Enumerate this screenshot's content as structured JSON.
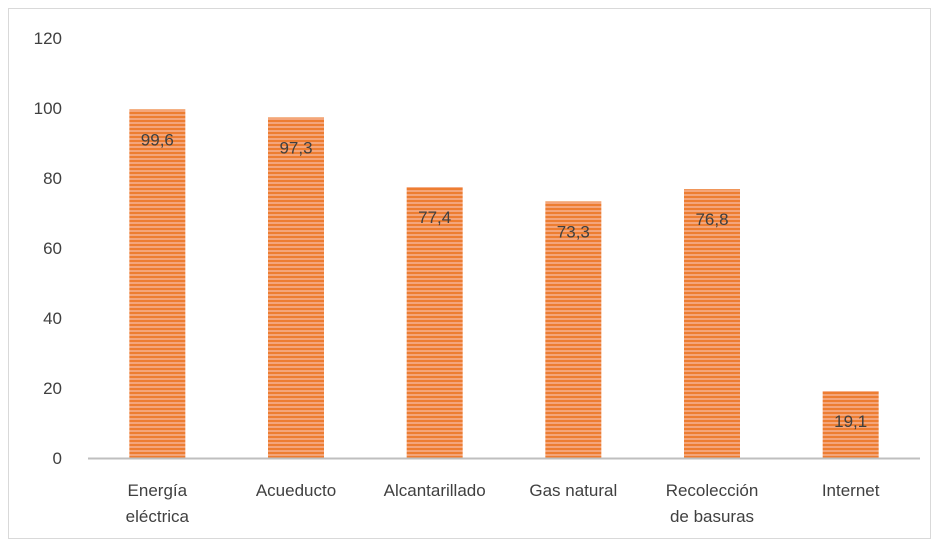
{
  "chart_data": {
    "type": "bar",
    "categories": [
      [
        "Energía",
        "eléctrica"
      ],
      [
        "Acueducto"
      ],
      [
        "Alcantarillado"
      ],
      [
        "Gas natural"
      ],
      [
        "Recolección",
        "de basuras"
      ],
      [
        "Internet"
      ]
    ],
    "values": [
      99.6,
      97.3,
      77.4,
      73.3,
      76.8,
      19.1
    ],
    "data_labels": [
      "99,6",
      "97,3",
      "77,4",
      "73,3",
      "76,8",
      "19,1"
    ],
    "ylim": [
      0,
      120
    ],
    "yticks": [
      0,
      20,
      40,
      60,
      80,
      100,
      120
    ],
    "title": "",
    "xlabel": "",
    "ylabel": "",
    "grid": false,
    "legend": "none",
    "bar_color": "#F4A57A",
    "bar_stripe_color": "#ED7D31",
    "axis_color": "#BFBFBF",
    "text_color": "#404040"
  }
}
